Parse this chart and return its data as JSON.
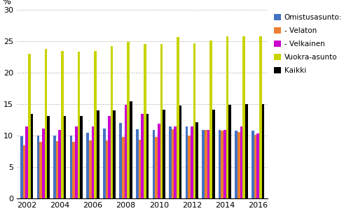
{
  "years": [
    2002,
    2003,
    2004,
    2005,
    2006,
    2007,
    2008,
    2009,
    2010,
    2011,
    2012,
    2013,
    2014,
    2015,
    2016
  ],
  "omistusasunto": [
    9.9,
    10.0,
    10.0,
    10.0,
    10.5,
    11.1,
    12.0,
    11.0,
    10.9,
    11.5,
    11.5,
    10.9,
    10.9,
    10.8,
    10.8
  ],
  "velaton": [
    8.5,
    9.0,
    9.1,
    9.0,
    9.3,
    9.3,
    9.8,
    9.4,
    9.8,
    11.0,
    10.0,
    10.9,
    10.8,
    10.6,
    10.2
  ],
  "velkainen": [
    11.5,
    11.1,
    10.9,
    11.5,
    11.5,
    13.1,
    14.9,
    13.5,
    11.9,
    11.5,
    11.5,
    10.9,
    10.9,
    11.5,
    10.4
  ],
  "vuokra_asunto": [
    23.1,
    23.8,
    23.5,
    23.4,
    23.5,
    24.3,
    24.9,
    24.6,
    24.6,
    25.7,
    24.7,
    25.2,
    25.8,
    25.8,
    25.8
  ],
  "kaikki": [
    13.5,
    13.2,
    13.1,
    13.1,
    14.0,
    14.0,
    15.5,
    13.5,
    14.2,
    14.8,
    12.2,
    14.2,
    14.9,
    15.0,
    15.0
  ],
  "colors": {
    "omistusasunto": "#4472C4",
    "velaton": "#ED7D31",
    "velkainen": "#CC00CC",
    "vuokra_asunto": "#C8D400",
    "kaikki": "#000000"
  },
  "legend_labels": [
    "Omistusasunto:",
    "- Velaton",
    "- Velkainen",
    "Vuokra-asunto",
    "Kaikki"
  ],
  "ylabel": "%",
  "ylim": [
    0,
    30
  ],
  "yticks": [
    0,
    5,
    10,
    15,
    20,
    25,
    30
  ],
  "xticks": [
    2002,
    2004,
    2006,
    2008,
    2010,
    2012,
    2014,
    2016
  ]
}
